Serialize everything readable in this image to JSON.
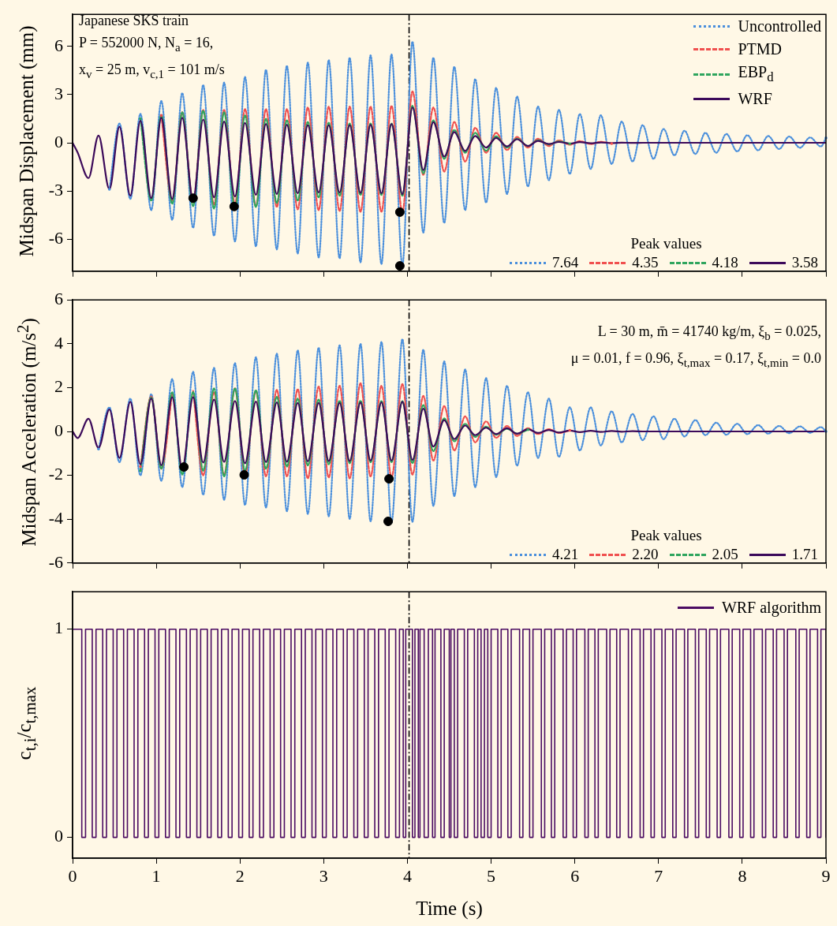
{
  "chart_data": [
    {
      "type": "line",
      "ylabel": "Midspan Displacement (mm)",
      "xlim": [
        0,
        9
      ],
      "xticks": [
        0,
        1,
        2,
        3,
        4,
        5,
        6,
        7,
        8,
        9
      ],
      "ylim": [
        -8,
        8
      ],
      "yticks": [
        -6,
        -3,
        0,
        3,
        6
      ],
      "tick_labels": "y",
      "legend": "top right",
      "marker": "none",
      "annotations": [
        "Japanese SKS train",
        "P = 552000 N, N$_{a}$ = 16,",
        "x$_{v}$ = 25 m, v$_{c,1}$ = 101 m/s",
        "Peak values",
        "7.64",
        "4.35",
        "4.18",
        "3.58"
      ],
      "ref_lines": [
        {
          "axis": "x",
          "value": 4.02
        }
      ],
      "x": [
        0,
        0.06,
        0.19,
        0.31,
        0.44,
        0.56,
        0.69,
        0.81,
        0.94,
        1.06,
        1.19,
        1.31,
        1.44,
        1.56,
        1.69,
        1.81,
        1.94,
        2.06,
        2.19,
        2.31,
        2.44,
        2.56,
        2.69,
        2.81,
        2.94,
        3.06,
        3.19,
        3.31,
        3.44,
        3.56,
        3.69,
        3.81,
        3.94,
        4.06,
        4.19,
        4.31,
        4.44,
        4.56,
        4.69,
        4.81,
        4.94,
        5.06,
        5.19,
        5.31,
        5.44,
        5.56,
        5.69,
        5.81,
        5.94,
        6.06,
        6.19,
        6.31,
        6.44,
        6.56,
        6.69,
        6.81,
        6.94,
        7.06,
        7.19,
        7.31,
        7.44,
        7.56,
        7.69,
        7.81,
        7.94,
        8.06,
        8.19,
        8.31,
        8.44,
        8.56,
        8.69,
        8.81,
        8.94,
        9
      ],
      "series": [
        {
          "name": "Uncontrolled",
          "color": "#4a8fdc",
          "line_style": "dotted",
          "values": [
            null,
            null,
            null,
            null,
            -2.9,
            1.2,
            -3.5,
            1.8,
            -4.2,
            2.6,
            -4.8,
            3.1,
            -5.3,
            3.6,
            -5.8,
            3.75,
            -6.15,
            4.1,
            -6.45,
            4.55,
            -6.65,
            4.8,
            -6.9,
            5.0,
            -7.15,
            5.15,
            -7.2,
            5.3,
            -7.45,
            5.45,
            -7.55,
            5.5,
            -7.64,
            6.3,
            -5.6,
            5.3,
            -5.0,
            4.74,
            -4.2,
            3.97,
            -3.73,
            3.42,
            -3.19,
            2.88,
            -2.72,
            2.26,
            -2.33,
            2.05,
            -1.94,
            1.79,
            -1.63,
            1.71,
            -1.32,
            1.32,
            -1.17,
            1.1,
            -1.0,
            0.86,
            -0.78,
            0.75,
            -0.7,
            0.62,
            -0.62,
            0.55,
            -0.54,
            0.47,
            -0.47,
            0.42,
            -0.39,
            0.39,
            -0.31,
            0.33,
            -0.23,
            0.3
          ]
        },
        {
          "name": "PTMD",
          "color": "#f0504f",
          "line_style": "dashed",
          "values": [
            null,
            null,
            null,
            null,
            null,
            null,
            null,
            null,
            null,
            1.7,
            -3.6,
            1.9,
            -3.7,
            2.05,
            -3.85,
            2.05,
            -3.8,
            2.1,
            -3.95,
            2.1,
            -4.0,
            2.1,
            -4.15,
            2.2,
            -4.2,
            2.25,
            -4.25,
            2.25,
            -4.3,
            2.25,
            -4.3,
            2.3,
            -4.35,
            3.2,
            -2.0,
            2.2,
            -1.8,
            1.3,
            -1.17,
            0.93,
            -0.62,
            0.62,
            -0.45,
            0.36,
            -0.3,
            0.25,
            -0.2,
            0.15,
            -0.12,
            0.1,
            -0.08,
            0.06,
            -0.05,
            null,
            null,
            null,
            null,
            null,
            null,
            null,
            null,
            null,
            null,
            null,
            null,
            null,
            null,
            null,
            null,
            null,
            null,
            null,
            null,
            null
          ]
        },
        {
          "name": "EBP$_{d}$",
          "color": "#2fa55e",
          "line_style": "dashed",
          "values": [
            null,
            null,
            null,
            null,
            null,
            null,
            null,
            1.5,
            -3.6,
            1.75,
            -3.8,
            1.9,
            -3.95,
            2.0,
            -4.1,
            1.9,
            -4.18,
            1.7,
            -4.0,
            1.5,
            -3.75,
            1.4,
            -3.6,
            1.3,
            -3.4,
            1.25,
            -3.3,
            1.2,
            -3.25,
            1.2,
            -3.25,
            1.2,
            -3.3,
            2.3,
            -1.9,
            1.4,
            -1.0,
            0.8,
            -0.62,
            0.62,
            -0.5,
            0.4,
            -0.3,
            0.25,
            -0.2,
            0.15,
            -0.1,
            0.08,
            -0.06,
            null,
            null,
            null,
            null,
            null,
            null,
            null,
            null,
            null,
            null,
            null,
            null,
            null,
            null,
            null,
            null,
            null,
            null,
            null,
            null,
            null,
            null,
            null,
            null,
            null
          ]
        },
        {
          "name": "WRF",
          "color": "#3c0a5a",
          "line_style": "solid",
          "values": [
            0,
            -0.6,
            -2.2,
            0.45,
            -2.9,
            1.0,
            -3.3,
            1.37,
            -3.45,
            1.55,
            -3.5,
            1.55,
            -3.58,
            1.45,
            -3.4,
            1.32,
            -3.35,
            1.24,
            -3.25,
            1.17,
            -3.2,
            1.12,
            -3.15,
            1.1,
            -3.1,
            1.1,
            -3.1,
            1.1,
            -3.12,
            1.12,
            -3.15,
            1.17,
            -3.2,
            2.2,
            -1.7,
            1.28,
            -0.86,
            0.67,
            -0.51,
            0.42,
            -0.3,
            0.3,
            -0.23,
            0.22,
            -0.2,
            0.12,
            -0.08,
            0.05,
            -0.05,
            0.04,
            -0.03,
            0.02,
            -0.02,
            0.01,
            -0.01,
            0,
            0,
            0,
            0,
            0,
            0,
            0,
            0,
            0,
            0,
            0,
            0,
            0,
            0,
            0,
            0,
            0,
            0,
            0
          ]
        },
        {
          "type": "scatter",
          "color": "#000000",
          "marker": "circle",
          "x": [
            1.44,
            1.93,
            3.91,
            3.91
          ],
          "values": [
            -3.45,
            -3.97,
            -4.32,
            -7.67
          ]
        }
      ]
    },
    {
      "type": "line",
      "ylabel": "Midspan Acceleration (m/s$^{2}$)",
      "xlim": [
        0,
        9
      ],
      "xticks": [
        0,
        1,
        2,
        3,
        4,
        5,
        6,
        7,
        8,
        9
      ],
      "ylim": [
        -6,
        6
      ],
      "yticks": [
        -6,
        -4,
        -2,
        0,
        2,
        4,
        6
      ],
      "tick_labels": "y",
      "marker": "none",
      "annotations": [
        "L = 30 m, m̄ = 41740 kg/m, ξ$_{b}$ = 0.025,",
        "μ = 0.01, f = 0.96, ξ$_{t,max}$ = 0.17, ξ$_{t,min}$ = 0.0",
        "Peak values",
        "4.21",
        "2.20",
        "2.05",
        "1.71"
      ],
      "ref_lines": [
        {
          "axis": "x",
          "value": 4.02
        }
      ],
      "x": [
        0,
        0.06,
        0.19,
        0.31,
        0.44,
        0.56,
        0.69,
        0.81,
        0.94,
        1.06,
        1.19,
        1.31,
        1.44,
        1.56,
        1.69,
        1.81,
        1.94,
        2.06,
        2.19,
        2.31,
        2.44,
        2.56,
        2.69,
        2.81,
        2.94,
        3.06,
        3.19,
        3.31,
        3.44,
        3.56,
        3.69,
        3.81,
        3.94,
        4.06,
        4.19,
        4.31,
        4.44,
        4.56,
        4.69,
        4.81,
        4.94,
        5.06,
        5.19,
        5.31,
        5.44,
        5.56,
        5.69,
        5.81,
        5.94,
        6.06,
        6.19,
        6.31,
        6.44,
        6.56,
        6.69,
        6.81,
        6.94,
        7.06,
        7.19,
        7.31,
        7.44,
        7.56,
        7.69,
        7.81,
        7.94,
        8.06,
        8.19,
        8.31,
        8.44,
        8.56,
        8.69,
        8.81,
        8.94,
        9
      ],
      "series": [
        {
          "color": "#4a8fdc",
          "line_style": "dotted",
          "values": [
            null,
            null,
            null,
            -0.8,
            1.1,
            -1.4,
            1.5,
            -2.0,
            1.7,
            -2.25,
            2.39,
            -2.54,
            2.72,
            -2.89,
            2.9,
            -3.12,
            3.12,
            -3.35,
            3.39,
            -3.47,
            3.55,
            -3.64,
            3.7,
            -3.76,
            3.82,
            -3.87,
            3.93,
            -3.99,
            3.99,
            -4.1,
            4.08,
            -4.15,
            4.21,
            -4.12,
            3.73,
            -3.4,
            3.2,
            -2.95,
            2.83,
            -2.54,
            2.43,
            -2.08,
            2.08,
            -1.56,
            1.79,
            -1.21,
            1.5,
            -1.16,
            1.1,
            -0.87,
            1.1,
            -0.64,
            0.92,
            -0.5,
            0.8,
            -0.4,
            0.69,
            -0.35,
            0.58,
            -0.23,
            0.52,
            -0.17,
            0.4,
            -0.15,
            0.35,
            -0.12,
            0.29,
            -0.1,
            0.25,
            -0.08,
            0.23,
            -0.06,
            0.2,
            0
          ]
        },
        {
          "color": "#f0504f",
          "line_style": "dashed",
          "values": [
            null,
            null,
            null,
            null,
            null,
            null,
            null,
            -1.6,
            1.6,
            -1.7,
            1.75,
            null,
            1.85,
            -2.0,
            1.8,
            -2.0,
            1.97,
            -2.0,
            1.85,
            -2.05,
            1.9,
            -2.05,
            1.93,
            -2.14,
            2.05,
            -2.1,
            2.08,
            -2.14,
            2.2,
            -2.05,
            2.08,
            -2.1,
            2.16,
            -1.97,
            1.62,
            -1.33,
            1.16,
            -0.87,
            0.69,
            -0.5,
            0.46,
            -0.29,
            0.25,
            -0.2,
            0.15,
            -0.12,
            0.1,
            -0.07,
            0.05,
            null,
            null,
            null,
            null,
            null,
            null,
            null,
            null,
            null,
            null,
            null,
            null,
            null,
            null,
            null,
            null,
            null,
            null,
            null,
            null,
            null,
            null,
            null,
            null,
            null
          ]
        },
        {
          "color": "#2fa55e",
          "line_style": "dashed",
          "values": [
            null,
            null,
            null,
            null,
            null,
            null,
            null,
            -1.79,
            1.55,
            -1.7,
            1.79,
            -1.97,
            1.8,
            -1.79,
            1.97,
            -2.05,
            1.97,
            -1.8,
            1.88,
            -1.7,
            1.58,
            -1.6,
            1.5,
            -1.55,
            1.45,
            -1.5,
            1.4,
            -1.45,
            1.4,
            -1.4,
            1.38,
            -1.4,
            1.38,
            -1.45,
            1.2,
            -0.9,
            0.6,
            -0.45,
            0.35,
            -0.25,
            0.22,
            -0.15,
            0.12,
            -0.1,
            0.08,
            null,
            null,
            null,
            null,
            null,
            null,
            null,
            null,
            null,
            null,
            null,
            null,
            null,
            null,
            null,
            null,
            null,
            null,
            null,
            null,
            null,
            null,
            null,
            null,
            null,
            null,
            null,
            null,
            null
          ]
        },
        {
          "color": "#3c0a5a",
          "line_style": "solid",
          "values": [
            0,
            -0.3,
            0.58,
            -0.75,
            1.0,
            -1.21,
            1.35,
            -1.5,
            1.5,
            -1.54,
            1.56,
            -1.71,
            1.56,
            -1.42,
            1.45,
            -1.39,
            1.39,
            -1.45,
            1.36,
            -1.4,
            1.33,
            -1.38,
            1.3,
            -1.36,
            1.3,
            -1.35,
            1.3,
            -1.35,
            1.32,
            -1.33,
            1.33,
            -1.33,
            1.35,
            -1.3,
            1.04,
            -0.69,
            0.52,
            -0.35,
            0.27,
            -0.17,
            0.17,
            -0.12,
            0.15,
            -0.1,
            0.1,
            -0.07,
            0.07,
            -0.05,
            0.04,
            -0.03,
            0.03,
            -0.02,
            0.02,
            -0.01,
            0.01,
            0,
            0,
            0,
            0,
            0,
            0,
            0,
            0,
            0,
            0,
            0,
            0,
            0,
            0,
            0,
            0,
            0,
            0,
            0
          ]
        },
        {
          "type": "scatter",
          "color": "#000000",
          "marker": "circle",
          "x": [
            1.33,
            2.05,
            3.78,
            3.77
          ],
          "values": [
            -1.62,
            -1.98,
            -2.16,
            -4.1
          ]
        }
      ]
    },
    {
      "type": "step",
      "ylabel": "c$_{t,i}$/c$_{t,max}$",
      "xlabel": "Time (s)",
      "xlim": [
        0,
        9
      ],
      "xticks": [
        0,
        1,
        2,
        3,
        4,
        5,
        6,
        7,
        8,
        9
      ],
      "ylim": [
        -0.1,
        1.18
      ],
      "yticks": [
        0,
        1
      ],
      "legend": "top right",
      "ref_lines": [
        {
          "axis": "x",
          "value": 4.02
        }
      ],
      "x": [
        0,
        0.11,
        0.155,
        0.235,
        0.28,
        0.36,
        0.405,
        0.485,
        0.53,
        0.61,
        0.655,
        0.735,
        0.78,
        0.86,
        0.905,
        0.985,
        1.03,
        1.11,
        1.155,
        1.235,
        1.28,
        1.36,
        1.405,
        1.485,
        1.53,
        1.61,
        1.655,
        1.735,
        1.78,
        1.86,
        1.905,
        1.985,
        2.03,
        2.11,
        2.155,
        2.235,
        2.28,
        2.36,
        2.405,
        2.485,
        2.53,
        2.61,
        2.655,
        2.735,
        2.78,
        2.86,
        2.905,
        2.985,
        3.03,
        3.11,
        3.155,
        3.235,
        3.28,
        3.36,
        3.405,
        3.485,
        3.53,
        3.61,
        3.655,
        3.735,
        3.78,
        3.86,
        3.905,
        3.95,
        3.98,
        4.06,
        4.09,
        4.13,
        4.15,
        4.2,
        4.25,
        4.3,
        4.33,
        4.4,
        4.44,
        4.5,
        4.52,
        4.56,
        4.6,
        4.68,
        4.72,
        4.8,
        4.84,
        4.88,
        4.92,
        4.96,
        5.0,
        5.08,
        5.12,
        5.2,
        5.24,
        5.34,
        5.38,
        5.46,
        5.5,
        5.6,
        5.64,
        5.72,
        5.76,
        5.86,
        5.9,
        5.98,
        6.02,
        6.12,
        6.16,
        6.24,
        6.28,
        6.38,
        6.42,
        6.5,
        6.54,
        6.64,
        6.68,
        6.78,
        6.82,
        6.91,
        6.95,
        7.04,
        7.08,
        7.17,
        7.21,
        7.31,
        7.35,
        7.44,
        7.48,
        7.57,
        7.61,
        7.7,
        7.74,
        7.84,
        7.88,
        7.97,
        8.01,
        8.1,
        8.14,
        8.24,
        8.28,
        8.37,
        8.41,
        8.5,
        8.54,
        8.64,
        8.68,
        8.77,
        8.81,
        8.9,
        8.94,
        9
      ],
      "series": [
        {
          "name": "WRF algorithm",
          "color": "#4b0c62",
          "values": [
            1,
            0,
            1,
            0,
            1,
            0,
            1,
            0,
            1,
            0,
            1,
            0,
            1,
            0,
            1,
            0,
            1,
            0,
            1,
            0,
            1,
            0,
            1,
            0,
            1,
            0,
            1,
            0,
            1,
            0,
            1,
            0,
            1,
            0,
            1,
            0,
            1,
            0,
            1,
            0,
            1,
            0,
            1,
            0,
            1,
            0,
            1,
            0,
            1,
            0,
            1,
            0,
            1,
            0,
            1,
            0,
            1,
            0,
            1,
            0,
            1,
            0,
            1,
            0,
            1,
            0,
            1,
            0,
            1,
            0,
            1,
            0,
            1,
            0,
            1,
            0,
            1,
            0,
            1,
            0,
            1,
            0,
            1,
            0,
            1,
            0,
            1,
            0,
            1,
            0,
            1,
            0,
            1,
            0,
            1,
            0,
            1,
            0,
            1,
            0,
            1,
            0,
            1,
            0,
            1,
            0,
            1,
            0,
            1,
            0,
            1,
            0,
            1,
            0,
            1,
            0,
            1,
            0,
            1,
            0,
            1,
            0,
            1,
            0,
            1,
            0,
            1,
            0,
            1,
            0,
            1,
            0,
            1,
            0,
            1,
            0,
            1,
            0,
            1,
            0,
            1,
            0,
            1,
            0,
            1,
            0,
            1,
            0
          ]
        }
      ]
    }
  ]
}
